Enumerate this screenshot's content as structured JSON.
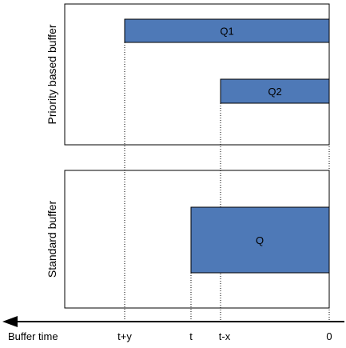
{
  "panels": {
    "top": {
      "label": "Priority based buffer"
    },
    "bottom": {
      "label": "Standard buffer"
    }
  },
  "bars": {
    "q1": {
      "label": "Q1"
    },
    "q2": {
      "label": "Q2"
    },
    "q": {
      "label": "Q"
    }
  },
  "axis": {
    "title": "Buffer time",
    "ticks": [
      "t+y",
      "t",
      "t-x",
      "0"
    ]
  },
  "colors": {
    "bar_fill": "#4e79b7",
    "outline": "#000000",
    "background": "#ffffff"
  }
}
